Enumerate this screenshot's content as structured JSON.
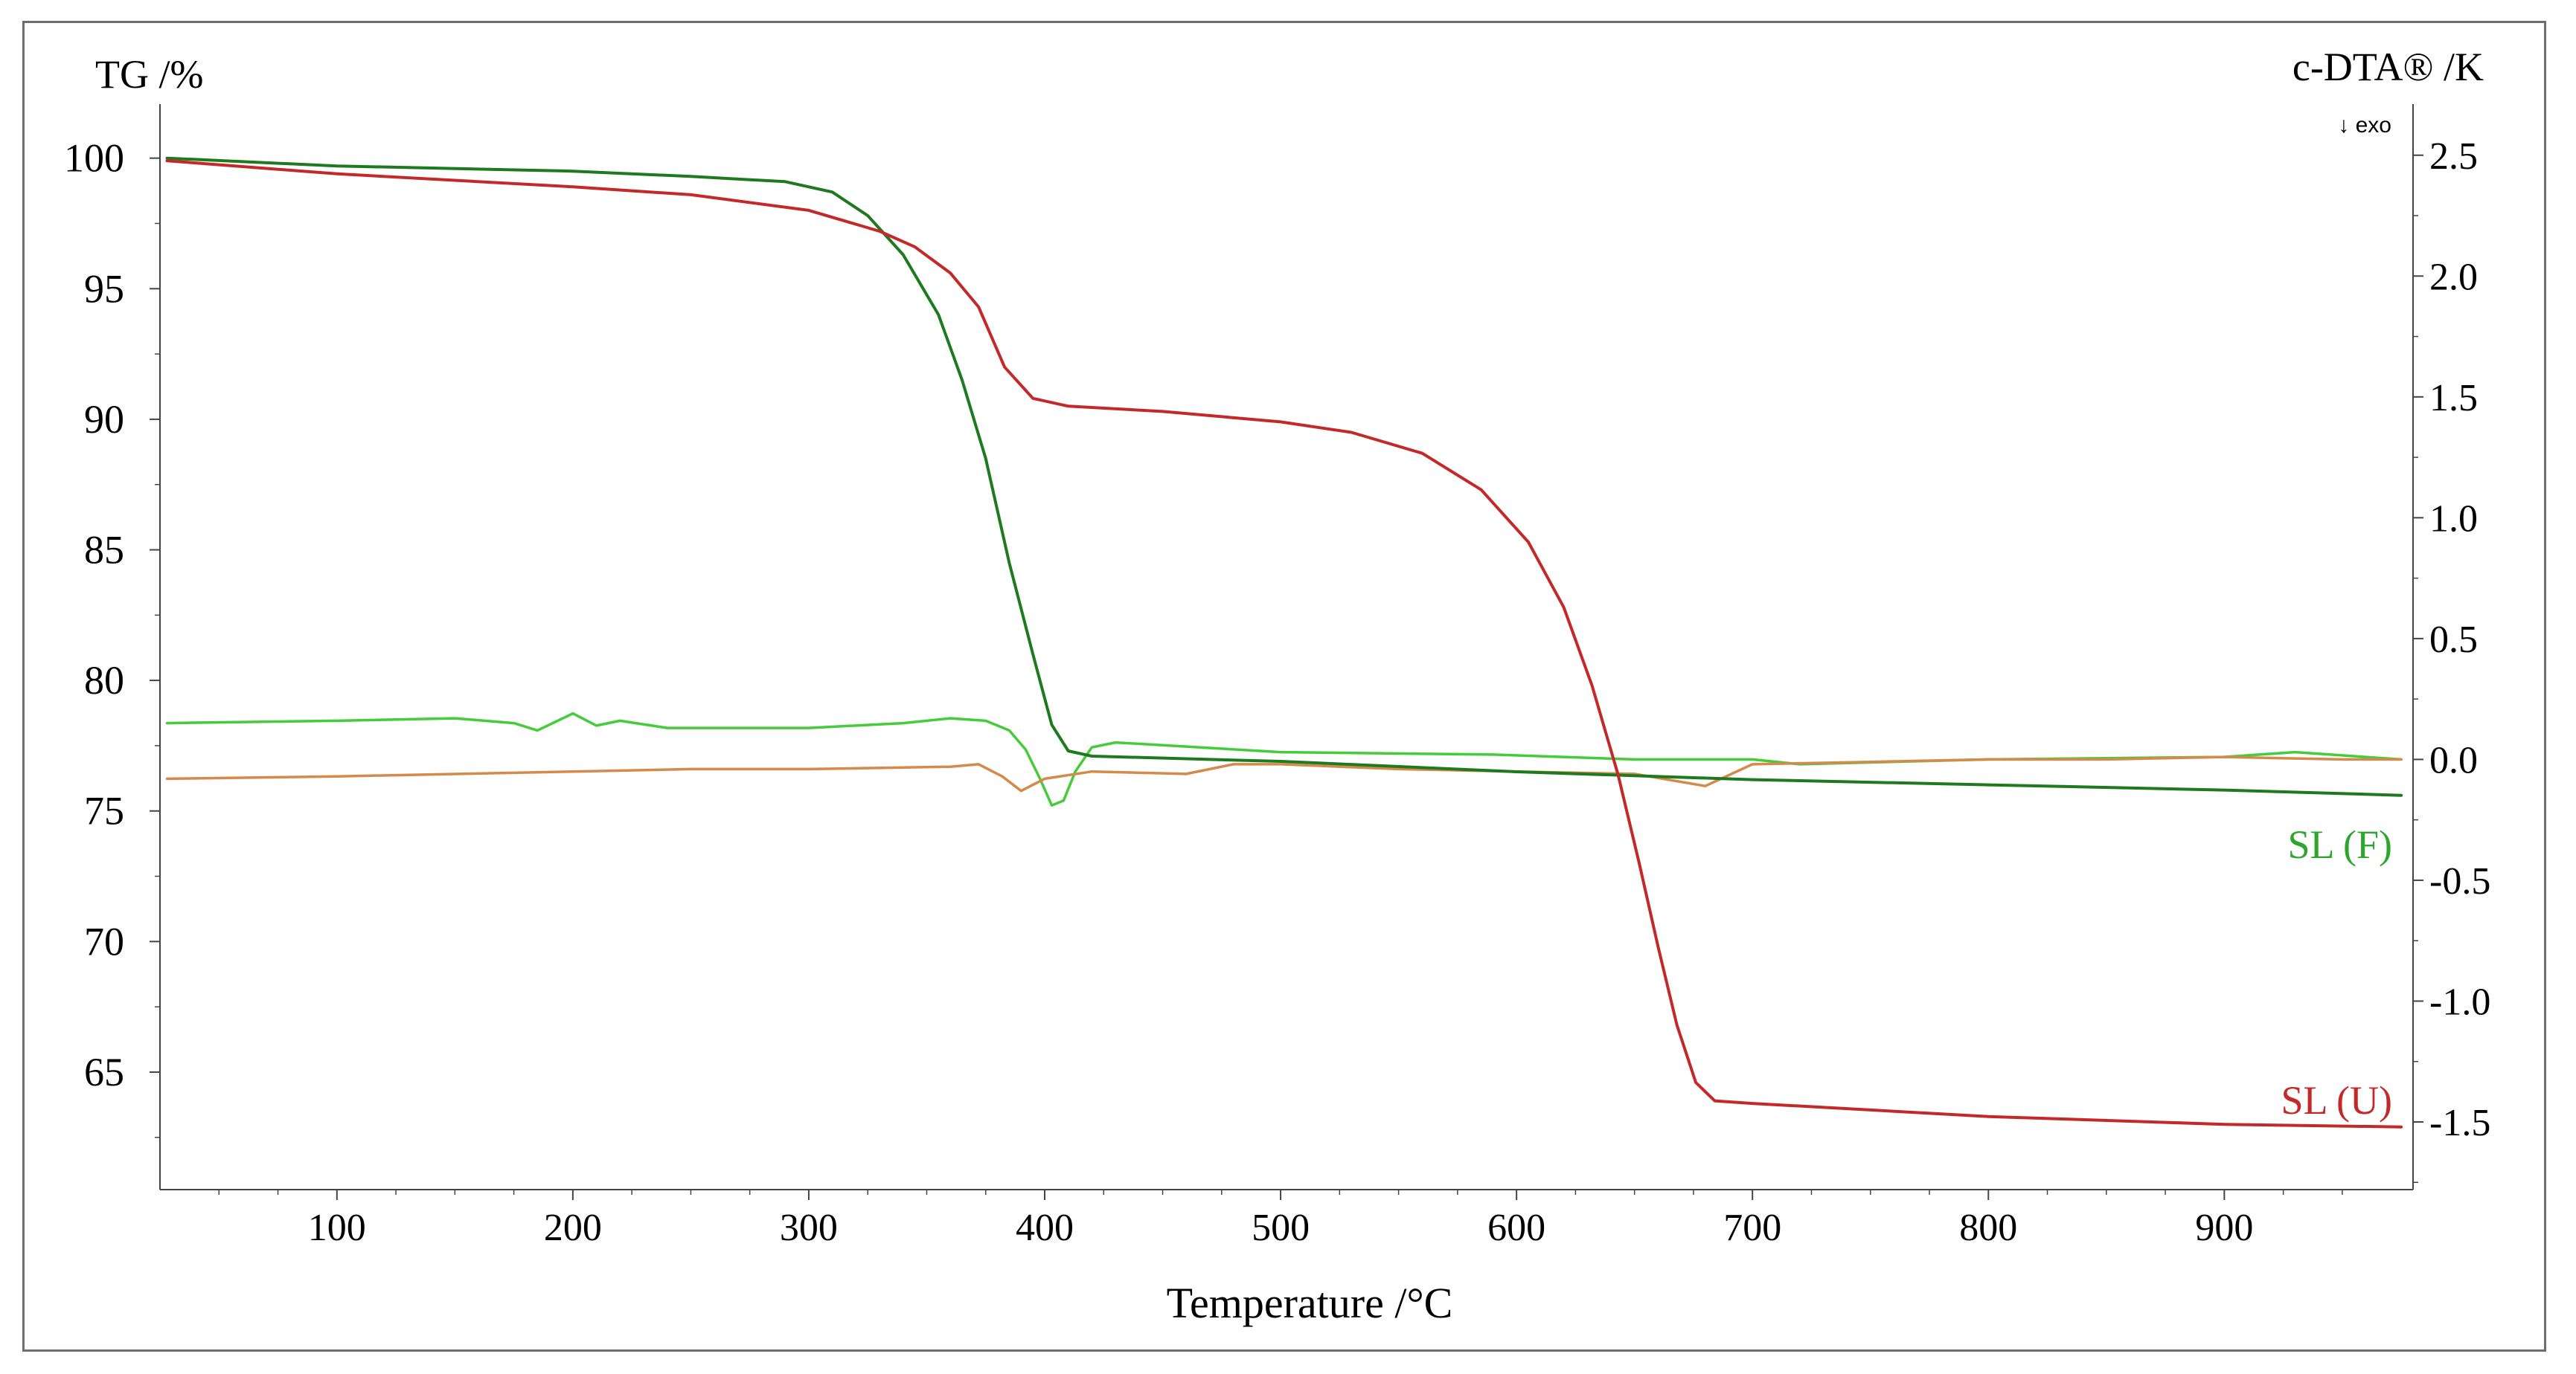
{
  "chart_data": {
    "type": "line",
    "xlabel": "Temperature /°C",
    "ylabel_left": "TG /%",
    "ylabel_right": "c-DTA® /K",
    "right_axis_note": "↓ exo",
    "xlim": [
      25,
      980
    ],
    "ylim_left": [
      60.5,
      101.5
    ],
    "ylim_right": [
      -1.78,
      2.65
    ],
    "x_ticks": [
      "100",
      "200",
      "300",
      "400",
      "500",
      "600",
      "700",
      "800",
      "900"
    ],
    "y_ticks_left": [
      "100",
      "95",
      "90",
      "85",
      "80",
      "75",
      "70",
      "65"
    ],
    "y_ticks_right": [
      "2.5",
      "2.0",
      "1.5",
      "1.0",
      "0.5",
      "0.0",
      "-0.5",
      "-1.0",
      "-1.5"
    ],
    "grid": false,
    "series": [
      {
        "name": "SL (F)",
        "quantity": "TG",
        "axis": "left",
        "color": "#1e7a1e",
        "points": [
          [
            28,
            100.0
          ],
          [
            100,
            99.7
          ],
          [
            200,
            99.5
          ],
          [
            250,
            99.3
          ],
          [
            290,
            99.1
          ],
          [
            310,
            98.7
          ],
          [
            325,
            97.8
          ],
          [
            340,
            96.3
          ],
          [
            355,
            94.0
          ],
          [
            365,
            91.5
          ],
          [
            375,
            88.5
          ],
          [
            385,
            84.5
          ],
          [
            395,
            81.0
          ],
          [
            403,
            78.3
          ],
          [
            410,
            77.3
          ],
          [
            420,
            77.1
          ],
          [
            500,
            76.9
          ],
          [
            600,
            76.5
          ],
          [
            700,
            76.2
          ],
          [
            800,
            76.0
          ],
          [
            900,
            75.8
          ],
          [
            975,
            75.6
          ]
        ]
      },
      {
        "name": "SL (U)",
        "quantity": "TG",
        "axis": "left",
        "color": "#c42828",
        "points": [
          [
            28,
            99.9
          ],
          [
            100,
            99.4
          ],
          [
            200,
            98.9
          ],
          [
            250,
            98.6
          ],
          [
            300,
            98.0
          ],
          [
            330,
            97.2
          ],
          [
            345,
            96.6
          ],
          [
            360,
            95.6
          ],
          [
            372,
            94.3
          ],
          [
            383,
            92.0
          ],
          [
            395,
            90.8
          ],
          [
            410,
            90.5
          ],
          [
            450,
            90.3
          ],
          [
            500,
            89.9
          ],
          [
            530,
            89.5
          ],
          [
            560,
            88.7
          ],
          [
            585,
            87.3
          ],
          [
            605,
            85.3
          ],
          [
            620,
            82.8
          ],
          [
            632,
            79.8
          ],
          [
            643,
            76.4
          ],
          [
            652,
            73.0
          ],
          [
            660,
            69.8
          ],
          [
            668,
            66.8
          ],
          [
            676,
            64.6
          ],
          [
            684,
            63.9
          ],
          [
            700,
            63.8
          ],
          [
            800,
            63.3
          ],
          [
            900,
            63.0
          ],
          [
            975,
            62.9
          ]
        ]
      },
      {
        "name": "",
        "quantity": "c-DTA",
        "axis": "right",
        "color": "#44cc3a",
        "points": [
          [
            28,
            0.15
          ],
          [
            100,
            0.16
          ],
          [
            150,
            0.17
          ],
          [
            175,
            0.15
          ],
          [
            185,
            0.12
          ],
          [
            200,
            0.19
          ],
          [
            210,
            0.14
          ],
          [
            220,
            0.16
          ],
          [
            240,
            0.13
          ],
          [
            300,
            0.13
          ],
          [
            340,
            0.15
          ],
          [
            360,
            0.17
          ],
          [
            375,
            0.16
          ],
          [
            385,
            0.12
          ],
          [
            392,
            0.04
          ],
          [
            398,
            -0.08
          ],
          [
            403,
            -0.19
          ],
          [
            408,
            -0.17
          ],
          [
            413,
            -0.05
          ],
          [
            420,
            0.05
          ],
          [
            430,
            0.07
          ],
          [
            500,
            0.03
          ],
          [
            590,
            0.02
          ],
          [
            650,
            0.0
          ],
          [
            700,
            0.0
          ],
          [
            720,
            -0.02
          ],
          [
            800,
            0.0
          ],
          [
            900,
            0.01
          ],
          [
            930,
            0.03
          ],
          [
            975,
            0.0
          ]
        ]
      },
      {
        "name": "",
        "quantity": "c-DTA",
        "axis": "right",
        "color": "#d48a4a",
        "points": [
          [
            28,
            -0.08
          ],
          [
            100,
            -0.07
          ],
          [
            200,
            -0.05
          ],
          [
            250,
            -0.04
          ],
          [
            300,
            -0.04
          ],
          [
            360,
            -0.03
          ],
          [
            372,
            -0.02
          ],
          [
            382,
            -0.07
          ],
          [
            390,
            -0.13
          ],
          [
            400,
            -0.08
          ],
          [
            420,
            -0.05
          ],
          [
            460,
            -0.06
          ],
          [
            480,
            -0.02
          ],
          [
            500,
            -0.02
          ],
          [
            550,
            -0.04
          ],
          [
            600,
            -0.05
          ],
          [
            650,
            -0.06
          ],
          [
            680,
            -0.11
          ],
          [
            700,
            -0.02
          ],
          [
            750,
            -0.01
          ],
          [
            800,
            0.0
          ],
          [
            850,
            0.0
          ],
          [
            900,
            0.01
          ],
          [
            950,
            0.0
          ],
          [
            975,
            0.0
          ]
        ]
      }
    ]
  }
}
